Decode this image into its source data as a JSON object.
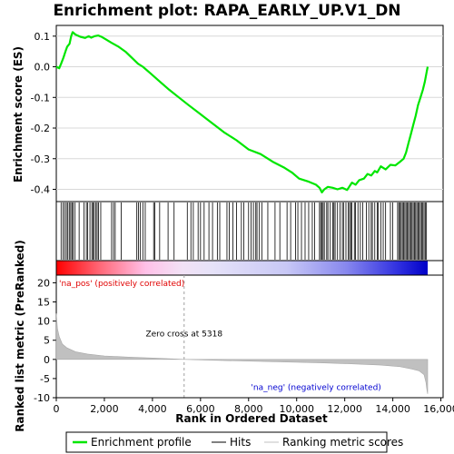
{
  "chart_data": {
    "type": "line",
    "title": "Enrichment plot: RAPA_EARLY_UP.V1_DN",
    "xlabel": "Rank in Ordered Dataset",
    "xlim": [
      0,
      15450
    ],
    "x_ticks": [
      "0",
      "2,000",
      "4,000",
      "6,000",
      "8,000",
      "10,000",
      "12,000",
      "14,000",
      "16,000"
    ],
    "x_tick_values": [
      0,
      2000,
      4000,
      6000,
      8000,
      10000,
      12000,
      14000,
      16000
    ],
    "top_panel": {
      "ylabel": "Enrichment score (ES)",
      "ylim": [
        -0.44,
        0.135
      ],
      "y_ticks": [
        "0.1",
        "0.0",
        "-0.1",
        "-0.2",
        "-0.3",
        "-0.4"
      ],
      "y_tick_values": [
        0.1,
        0.0,
        -0.1,
        -0.2,
        -0.3,
        -0.4
      ],
      "grid": true,
      "series": [
        {
          "name": "Enrichment profile",
          "color": "#00e600",
          "points": [
            [
              0,
              0.0
            ],
            [
              120,
              -0.005
            ],
            [
              200,
              0.01
            ],
            [
              300,
              0.03
            ],
            [
              380,
              0.05
            ],
            [
              450,
              0.065
            ],
            [
              550,
              0.075
            ],
            [
              620,
              0.1
            ],
            [
              680,
              0.113
            ],
            [
              800,
              0.105
            ],
            [
              1000,
              0.098
            ],
            [
              1200,
              0.094
            ],
            [
              1350,
              0.1
            ],
            [
              1450,
              0.095
            ],
            [
              1600,
              0.1
            ],
            [
              1750,
              0.102
            ],
            [
              1900,
              0.097
            ],
            [
              2050,
              0.09
            ],
            [
              2300,
              0.078
            ],
            [
              2600,
              0.065
            ],
            [
              2900,
              0.048
            ],
            [
              3200,
              0.025
            ],
            [
              3400,
              0.01
            ],
            [
              3600,
              0.0
            ],
            [
              3900,
              -0.02
            ],
            [
              4300,
              -0.048
            ],
            [
              4700,
              -0.075
            ],
            [
              5100,
              -0.1
            ],
            [
              5500,
              -0.125
            ],
            [
              6000,
              -0.155
            ],
            [
              6500,
              -0.185
            ],
            [
              7000,
              -0.215
            ],
            [
              7500,
              -0.24
            ],
            [
              8000,
              -0.27
            ],
            [
              8500,
              -0.285
            ],
            [
              9000,
              -0.31
            ],
            [
              9500,
              -0.33
            ],
            [
              9800,
              -0.345
            ],
            [
              10100,
              -0.365
            ],
            [
              10500,
              -0.375
            ],
            [
              10800,
              -0.385
            ],
            [
              10950,
              -0.395
            ],
            [
              11050,
              -0.41
            ],
            [
              11150,
              -0.4
            ],
            [
              11300,
              -0.392
            ],
            [
              11500,
              -0.395
            ],
            [
              11700,
              -0.4
            ],
            [
              11900,
              -0.395
            ],
            [
              12100,
              -0.402
            ],
            [
              12200,
              -0.39
            ],
            [
              12300,
              -0.378
            ],
            [
              12450,
              -0.385
            ],
            [
              12600,
              -0.37
            ],
            [
              12800,
              -0.365
            ],
            [
              12950,
              -0.35
            ],
            [
              13100,
              -0.355
            ],
            [
              13250,
              -0.34
            ],
            [
              13350,
              -0.345
            ],
            [
              13500,
              -0.325
            ],
            [
              13700,
              -0.335
            ],
            [
              13900,
              -0.32
            ],
            [
              14100,
              -0.322
            ],
            [
              14300,
              -0.31
            ],
            [
              14450,
              -0.3
            ],
            [
              14550,
              -0.28
            ],
            [
              14650,
              -0.25
            ],
            [
              14750,
              -0.22
            ],
            [
              14850,
              -0.19
            ],
            [
              14950,
              -0.16
            ],
            [
              15050,
              -0.125
            ],
            [
              15150,
              -0.1
            ],
            [
              15250,
              -0.075
            ],
            [
              15330,
              -0.05
            ],
            [
              15400,
              -0.02
            ],
            [
              15450,
              0.0
            ]
          ]
        }
      ]
    },
    "hits_panel": {
      "name": "Hits",
      "hit_ranks": [
        200,
        280,
        350,
        420,
        480,
        540,
        600,
        650,
        700,
        780,
        950,
        1150,
        1250,
        1300,
        1400,
        1480,
        1530,
        1580,
        1650,
        1700,
        1760,
        1850,
        2300,
        2380,
        2450,
        2700,
        3350,
        3420,
        3500,
        3600,
        3700,
        4050,
        4100,
        4300,
        4650,
        4900,
        5450,
        5600,
        5700,
        5900,
        6000,
        6150,
        6350,
        6500,
        6700,
        6800,
        7100,
        7200,
        7350,
        7500,
        7700,
        7800,
        8000,
        8100,
        8200,
        8300,
        8350,
        8450,
        8550,
        8800,
        9100,
        9300,
        9600,
        9750,
        9950,
        10050,
        10200,
        10350,
        10500,
        10650,
        10750,
        10950,
        11000,
        11050,
        11100,
        11150,
        11250,
        11300,
        11400,
        11500,
        11550,
        11600,
        11700,
        11800,
        11900,
        11950,
        12050,
        12150,
        12200,
        12250,
        12300,
        12400,
        12450,
        12550,
        12650,
        12750,
        12900,
        13000,
        13100,
        13150,
        13250,
        13350,
        13400,
        13500,
        13600,
        13700,
        13900,
        14000,
        14200,
        14250,
        14300,
        14350,
        14400,
        14450,
        14500,
        14550,
        14600,
        14650,
        14700,
        14750,
        14800,
        14850,
        14900,
        14950,
        15000,
        15050,
        15100,
        15150,
        15200,
        15250,
        15300,
        15350,
        15400
      ]
    },
    "ranked_metric_panel": {
      "name": "Ranking metric scores",
      "ylabel": "Ranked list metric (PreRanked)",
      "ylim": [
        -10,
        22
      ],
      "y_ticks": [
        "20",
        "15",
        "10",
        "5",
        "0",
        "-5",
        "-10"
      ],
      "y_tick_values": [
        20,
        15,
        10,
        5,
        0,
        -5,
        -10
      ],
      "points": [
        [
          0,
          12.0
        ],
        [
          50,
          8.0
        ],
        [
          120,
          6.0
        ],
        [
          250,
          4.0
        ],
        [
          450,
          3.0
        ],
        [
          800,
          2.0
        ],
        [
          1300,
          1.4
        ],
        [
          2000,
          0.9
        ],
        [
          3000,
          0.6
        ],
        [
          4000,
          0.35
        ],
        [
          5318,
          0.0
        ],
        [
          7000,
          -0.3
        ],
        [
          9000,
          -0.6
        ],
        [
          11000,
          -0.9
        ],
        [
          12500,
          -1.2
        ],
        [
          13500,
          -1.5
        ],
        [
          14300,
          -1.9
        ],
        [
          14800,
          -2.5
        ],
        [
          15100,
          -3.0
        ],
        [
          15300,
          -4.0
        ],
        [
          15380,
          -6.0
        ],
        [
          15420,
          -8.0
        ],
        [
          15450,
          -9.0
        ]
      ],
      "zero_cross_label": "Zero cross at 5318",
      "zero_cross": 5318,
      "pos_label": "'na_pos' (positively correlated)",
      "neg_label": "'na_neg' (negatively correlated)"
    },
    "legend": {
      "placement": "bottom",
      "entries": [
        "Enrichment profile",
        "Hits",
        "Ranking metric scores"
      ]
    }
  }
}
